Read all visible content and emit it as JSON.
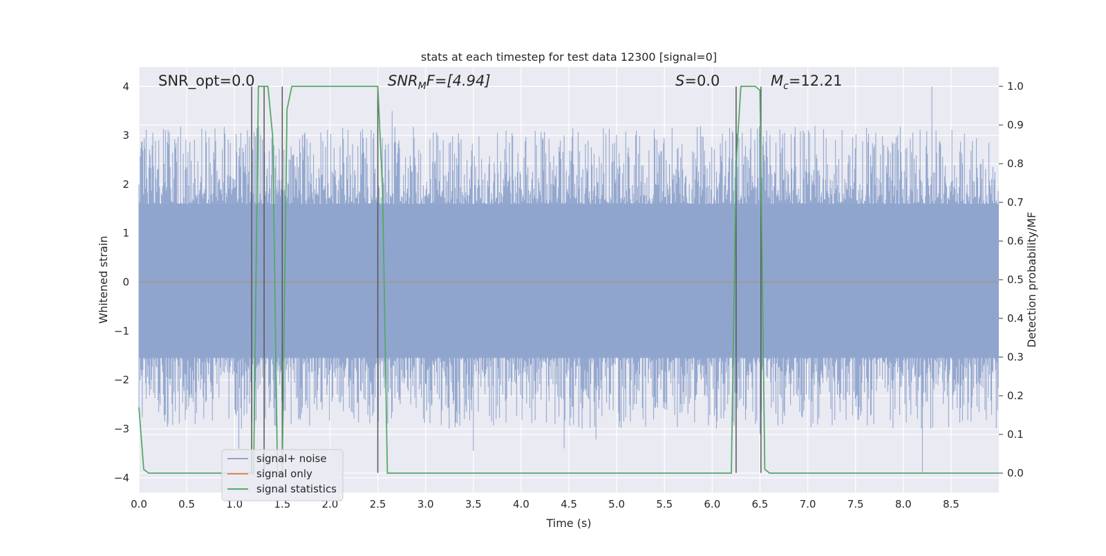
{
  "chart_data": {
    "type": "line",
    "title": "stats at each timestep for test data 12300 [signal=0]",
    "xlabel": "Time (s)",
    "ylabel_left": "Whitened strain",
    "ylabel_right": "Detection probability/MF",
    "xlim": [
      0.0,
      9.0
    ],
    "ylim_left": [
      -4.3,
      4.4
    ],
    "ylim_right": [
      -0.05,
      1.05
    ],
    "x_ticks": [
      "0.0",
      "0.5",
      "1.0",
      "1.5",
      "2.0",
      "2.5",
      "3.0",
      "3.5",
      "4.0",
      "4.5",
      "5.0",
      "5.5",
      "6.0",
      "6.5",
      "7.0",
      "7.5",
      "8.0",
      "8.5"
    ],
    "y_ticks_left": [
      "4",
      "3",
      "2",
      "1",
      "0",
      "−1",
      "−2",
      "−3",
      "−4"
    ],
    "y_ticks_right": [
      "1.0",
      "0.9",
      "0.8",
      "0.7",
      "0.6",
      "0.5",
      "0.4",
      "0.3",
      "0.2",
      "0.1",
      "0.0"
    ],
    "grid": true,
    "legend_position": "lower-left",
    "annotations": {
      "snr_opt": "SNR_opt=0.0",
      "snr_mf_base": "SNR",
      "snr_mf_sub": "M",
      "snr_mf_rest": "F=[4.94]",
      "s_label": "S",
      "s_value": "=0.0",
      "mc_base": "M",
      "mc_sub": "c",
      "mc_value": "=12.21"
    },
    "series": [
      {
        "name": "signal+ noise",
        "color": "#8fa4cc",
        "axis": "left",
        "description_values": "noise band, upper envelope ~2.5, peaks up to 4.0 at x=8.3; lower envelope ~-1.8, dips down to -3.9 at x=8.2"
      },
      {
        "name": "signal only",
        "color": "#dd8452",
        "axis": "left",
        "values": "flat at 0.0"
      },
      {
        "name": "signal statistics",
        "color": "#55a868",
        "axis": "right",
        "x": [
          0.0,
          0.05,
          0.1,
          0.15,
          1.15,
          1.2,
          1.25,
          1.3,
          1.35,
          1.4,
          1.45,
          1.5,
          1.55,
          1.6,
          2.5,
          2.55,
          2.6,
          2.65,
          6.2,
          6.25,
          6.3,
          6.35,
          6.45,
          6.5,
          6.55,
          6.6,
          6.65,
          9.0
        ],
        "y": [
          0.17,
          0.01,
          0.0,
          0.0,
          0.0,
          0.0,
          1.0,
          1.0,
          1.0,
          0.87,
          0.0,
          0.0,
          0.94,
          1.0,
          1.0,
          0.73,
          0.0,
          0.0,
          0.0,
          0.8,
          1.0,
          1.0,
          1.0,
          0.99,
          0.01,
          0.0,
          0.0,
          0.0
        ]
      }
    ],
    "vertical_markers_x": [
      1.18,
      1.31,
      1.5,
      2.5,
      6.25,
      6.51
    ]
  },
  "legend": {
    "items": [
      {
        "label": "signal+ noise",
        "color": "#8fa4cc"
      },
      {
        "label": "signal only",
        "color": "#dd8452"
      },
      {
        "label": "signal statistics",
        "color": "#55a868"
      }
    ]
  }
}
